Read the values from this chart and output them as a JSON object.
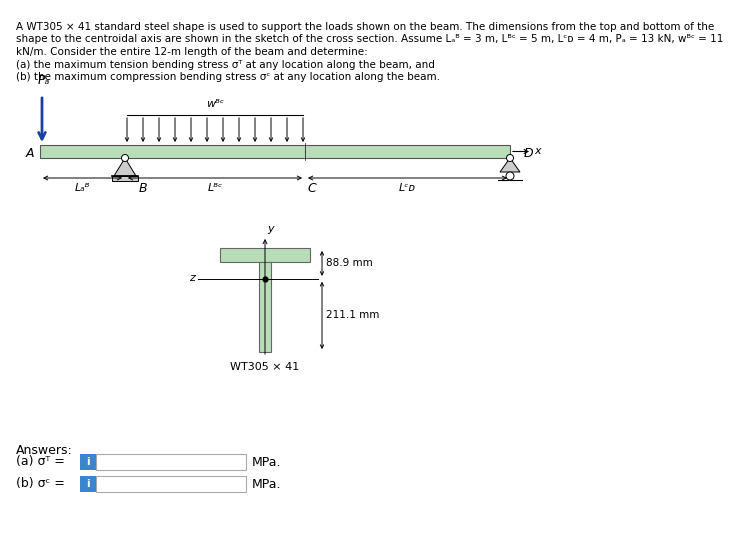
{
  "bg_color": "#ffffff",
  "beam_color": "#b8ddb8",
  "cross_color": "#b8ddb8",
  "answer_box_color": "#3a85d0",
  "title_lines": [
    "A WT305 × 41 standard steel shape is used to support the loads shown on the beam. The dimensions from the top and bottom of the",
    "shape to the centroidal axis are shown in the sketch of the cross section. Assume Lₐᴮ = 3 m, Lᴮᶜ = 5 m, Lᶜᴅ = 4 m, Pₐ = 13 kN, wᴮᶜ = 11",
    "kN/m. Consider the entire 12-m length of the beam and determine:",
    "(a) the maximum tension bending stress σᵀ at any location along the beam, and",
    "(b) the maximum compression bending stress σᶜ at any location along the beam."
  ],
  "label_PA": "Pₐ",
  "label_wBC": "wᴮᶜ",
  "label_A": "A",
  "label_B": "B",
  "label_C": "C",
  "label_D": "D",
  "label_x": "x",
  "label_y": "y",
  "label_z": "z",
  "label_LAB": "Lₐᴮ",
  "label_LBC": "Lᴮᶜ",
  "label_LCD": "Lᶜᴅ",
  "dim1": "88.9 mm",
  "dim2": "211.1 mm",
  "cross_label": "WT305 × 41",
  "answers_label": "Answers:",
  "answer_label_a": "(a) σᵀ =",
  "answer_label_b": "(b) σᶜ =",
  "answer_unit": "MPa."
}
